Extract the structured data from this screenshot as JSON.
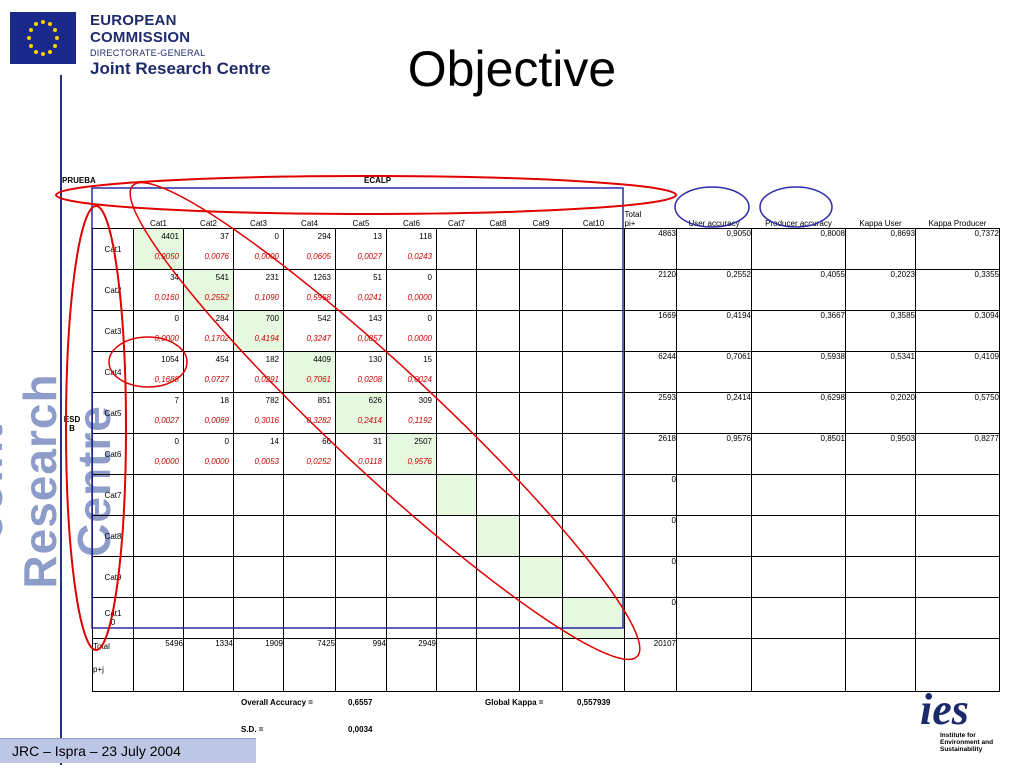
{
  "header": {
    "org_line1": "EUROPEAN COMMISSION",
    "org_line2": "DIRECTORATE-GENERAL",
    "org_line3": "Joint Research Centre"
  },
  "title": "Objective",
  "side_text": "Joint Research Centre",
  "labels": {
    "prueba": "PRUEBA",
    "ecalp": "ECALP",
    "esdb": "ESD\nB"
  },
  "columns": [
    "Cat1",
    "Cat2",
    "Cat3",
    "Cat4",
    "Cat5",
    "Cat6",
    "Cat7",
    "Cat8",
    "Cat9",
    "Cat10",
    "Total\npi+",
    "User accuracy",
    "Producer accuracy",
    "Kappa User",
    "Kappa Producer"
  ],
  "rows": [
    {
      "label": "Cat1",
      "counts": [
        "4401",
        "37",
        "0",
        "294",
        "13",
        "118",
        "",
        "",
        "",
        ""
      ],
      "props": [
        "0,9050",
        "0,0076",
        "0,0000",
        "0,0605",
        "0,0027",
        "0,0243",
        "",
        "",
        "",
        ""
      ],
      "total": "4863",
      "user_acc": "0,9050",
      "prod_acc": "0,8008",
      "kappa_user": "0,8693",
      "kappa_prod": "0,7372"
    },
    {
      "label": "Cat2",
      "counts": [
        "34",
        "541",
        "231",
        "1263",
        "51",
        "0",
        "",
        "",
        "",
        ""
      ],
      "props": [
        "0,0160",
        "0,2552",
        "0,1090",
        "0,5958",
        "0,0241",
        "0,0000",
        "",
        "",
        "",
        ""
      ],
      "total": "2120",
      "user_acc": "0,2552",
      "prod_acc": "0,4055",
      "kappa_user": "0,2023",
      "kappa_prod": "0,3355"
    },
    {
      "label": "Cat3",
      "counts": [
        "0",
        "284",
        "700",
        "542",
        "143",
        "0",
        "",
        "",
        "",
        ""
      ],
      "props": [
        "0,0000",
        "0,1702",
        "0,4194",
        "0,3247",
        "0,0857",
        "0,0000",
        "",
        "",
        "",
        ""
      ],
      "total": "1669",
      "user_acc": "0,4194",
      "prod_acc": "0,3667",
      "kappa_user": "0,3585",
      "kappa_prod": "0,3094"
    },
    {
      "label": "Cat4",
      "counts": [
        "1054",
        "454",
        "182",
        "4409",
        "130",
        "15",
        "",
        "",
        "",
        ""
      ],
      "props": [
        "0,1688",
        "0,0727",
        "0,0291",
        "0,7061",
        "0,0208",
        "0,0024",
        "",
        "",
        "",
        ""
      ],
      "total": "6244",
      "user_acc": "0,7061",
      "prod_acc": "0,5938",
      "kappa_user": "0,5341",
      "kappa_prod": "0,4109"
    },
    {
      "label": "Cat5",
      "counts": [
        "7",
        "18",
        "782",
        "851",
        "626",
        "309",
        "",
        "",
        "",
        ""
      ],
      "props": [
        "0,0027",
        "0,0069",
        "0,3016",
        "0,3282",
        "0,2414",
        "0,1192",
        "",
        "",
        "",
        ""
      ],
      "total": "2593",
      "user_acc": "0,2414",
      "prod_acc": "0,6298",
      "kappa_user": "0,2020",
      "kappa_prod": "0,5750"
    },
    {
      "label": "Cat6",
      "counts": [
        "0",
        "0",
        "14",
        "66",
        "31",
        "2507",
        "",
        "",
        "",
        ""
      ],
      "props": [
        "0,0000",
        "0,0000",
        "0,0053",
        "0,0252",
        "0,0118",
        "0,9576",
        "",
        "",
        "",
        ""
      ],
      "total": "2618",
      "user_acc": "0,9576",
      "prod_acc": "0,8501",
      "kappa_user": "0,9503",
      "kappa_prod": "0,8277"
    },
    {
      "label": "Cat7",
      "counts": [
        "",
        "",
        "",
        "",
        "",
        "",
        "",
        "",
        "",
        ""
      ],
      "props": [
        "",
        "",
        "",
        "",
        "",
        "",
        "",
        "",
        "",
        ""
      ],
      "total": "0",
      "user_acc": "",
      "prod_acc": "",
      "kappa_user": "",
      "kappa_prod": ""
    },
    {
      "label": "Cat8",
      "counts": [
        "",
        "",
        "",
        "",
        "",
        "",
        "",
        "",
        "",
        ""
      ],
      "props": [
        "",
        "",
        "",
        "",
        "",
        "",
        "",
        "",
        "",
        ""
      ],
      "total": "0",
      "user_acc": "",
      "prod_acc": "",
      "kappa_user": "",
      "kappa_prod": ""
    },
    {
      "label": "Cat9",
      "counts": [
        "",
        "",
        "",
        "",
        "",
        "",
        "",
        "",
        "",
        ""
      ],
      "props": [
        "",
        "",
        "",
        "",
        "",
        "",
        "",
        "",
        "",
        ""
      ],
      "total": "0",
      "user_acc": "",
      "prod_acc": "",
      "kappa_user": "",
      "kappa_prod": ""
    },
    {
      "label": "Cat1\n0",
      "counts": [
        "",
        "",
        "",
        "",
        "",
        "",
        "",
        "",
        "",
        ""
      ],
      "props": [
        "",
        "",
        "",
        "",
        "",
        "",
        "",
        "",
        "",
        ""
      ],
      "total": "0",
      "user_acc": "",
      "prod_acc": "",
      "kappa_user": "",
      "kappa_prod": ""
    }
  ],
  "total_row": {
    "label": "Total",
    "label2": "p+j",
    "values": [
      "5496",
      "1334",
      "1909",
      "7425",
      "994",
      "2949",
      "",
      "",
      "",
      ""
    ],
    "grand_total": "20107"
  },
  "summary": {
    "overall_accuracy_label": "Overall Accuracy =",
    "overall_accuracy": "0,6557",
    "global_kappa_label": "Global Kappa =",
    "global_kappa": "0,557939",
    "sd_label": "S.D. =",
    "sd": "0,0034"
  },
  "footer": "JRC – Ispra – 23 July 2004",
  "ies": {
    "word": "ies",
    "line1": "Institute for",
    "line2": "Environment and",
    "line3": "Sustainability"
  },
  "colors": {
    "diagonal": "#e6f8df",
    "proportions": "#cc0000",
    "annotation_red": "#e00000",
    "annotation_blue": "#2a2aa8",
    "brand": "#1f2a6b"
  }
}
